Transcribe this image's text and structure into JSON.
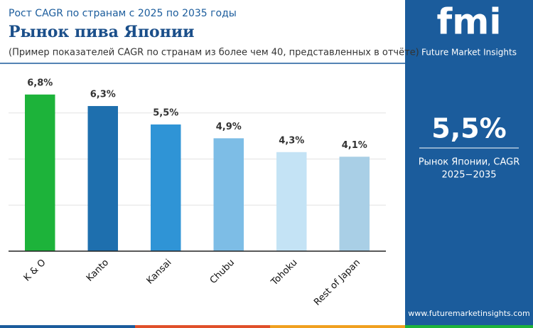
{
  "chart_data": {
    "type": "bar",
    "subtitle": "Рост CAGR по странам с 2025 по 2035 годы",
    "title": "Рынок пива Японии",
    "note": "(Пример показателей CAGR по странам из более чем 40, представленных в отчёте)",
    "categories": [
      "K & O",
      "Kanto",
      "Kansai",
      "Chubu",
      "Tohoku",
      "Rest of Japan"
    ],
    "values": [
      6.8,
      6.3,
      5.5,
      4.9,
      4.3,
      4.1
    ],
    "value_labels": [
      "6,8%",
      "6,3%",
      "5,5%",
      "4,9%",
      "4,3%",
      "4,1%"
    ],
    "colors": [
      "#1db33a",
      "#1e6fae",
      "#2f94d6",
      "#7dbde6",
      "#c4e3f5",
      "#a9cfe6"
    ],
    "ylim": [
      0,
      8
    ],
    "yticks": [
      0,
      2,
      4,
      6
    ],
    "grid": true
  },
  "panel": {
    "brand": "fmi",
    "brand_name": "Future Market Insights",
    "highlight": "5,5%",
    "highlight_caption": "Рынок Японии, CAGR",
    "highlight_period": "2025−2035",
    "website": "www.futuremarketinsights.com"
  }
}
